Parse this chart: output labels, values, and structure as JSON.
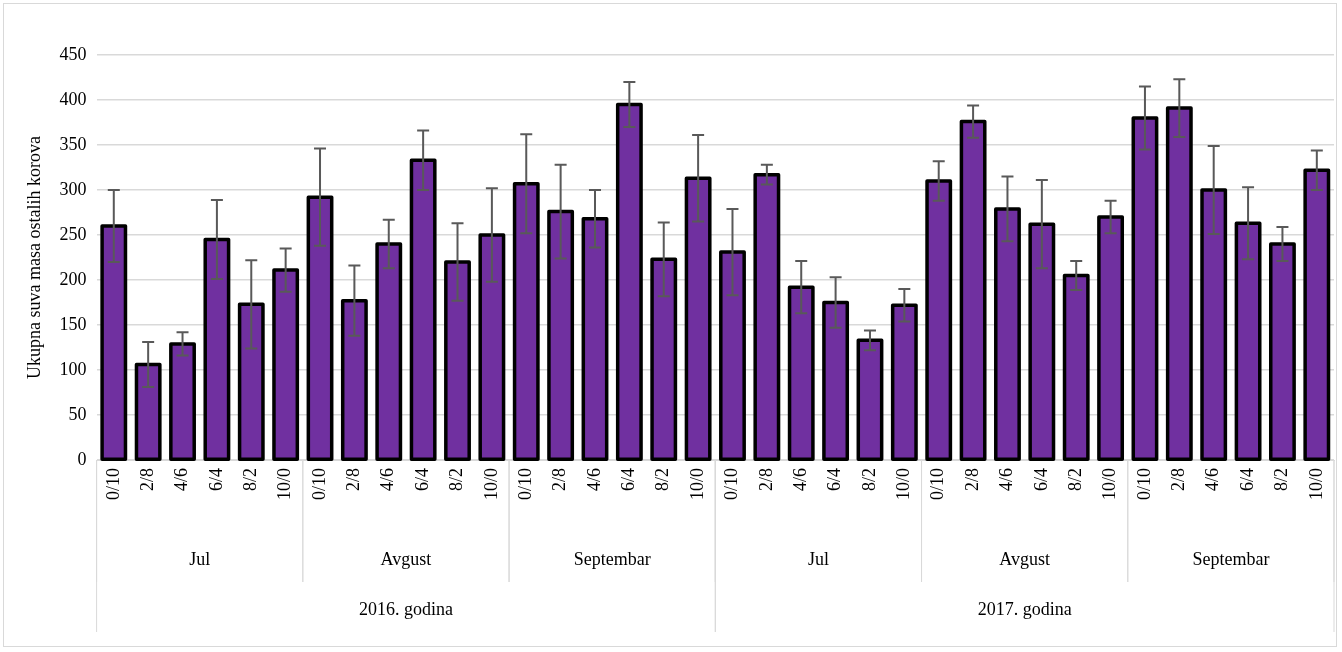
{
  "chart_data": {
    "type": "bar",
    "ylabel": "Ukupna suva masa ostalih korova",
    "categories": [
      "0/10",
      "2/8",
      "4/6",
      "6/4",
      "8/2",
      "10/0",
      "0/10",
      "2/8",
      "4/6",
      "6/4",
      "8/2",
      "10/0",
      "0/10",
      "2/8",
      "4/6",
      "6/4",
      "8/2",
      "10/0",
      "0/10",
      "2/8",
      "4/6",
      "6/4",
      "8/2",
      "10/0",
      "0/10",
      "2/8",
      "4/6",
      "6/4",
      "8/2",
      "10/0",
      "0/10",
      "2/8",
      "4/6",
      "6/4",
      "8/2",
      "10/0"
    ],
    "values": [
      260,
      106,
      129,
      245,
      173,
      211,
      292,
      177,
      240,
      333,
      220,
      250,
      307,
      276,
      268,
      395,
      223,
      313,
      231,
      317,
      192,
      175,
      133,
      172,
      310,
      376,
      279,
      262,
      205,
      270,
      380,
      391,
      300,
      263,
      240,
      322
    ],
    "errors": [
      40,
      25,
      13,
      44,
      49,
      24,
      54,
      39,
      27,
      33,
      43,
      52,
      55,
      52,
      32,
      25,
      41,
      48,
      48,
      11,
      29,
      28,
      11,
      18,
      22,
      18,
      36,
      49,
      16,
      18,
      35,
      32,
      49,
      40,
      19,
      22
    ],
    "color": "#7030a0",
    "ylim": [
      0,
      450
    ],
    "yticks": [
      0,
      50,
      100,
      150,
      200,
      250,
      300,
      350,
      400,
      450
    ],
    "grid": "y",
    "annotations": [
      "Jul",
      "Avgust",
      "Septembar",
      "Jul",
      "Avgust",
      "Septembar",
      "2016. godina",
      "2017. godina"
    ]
  }
}
